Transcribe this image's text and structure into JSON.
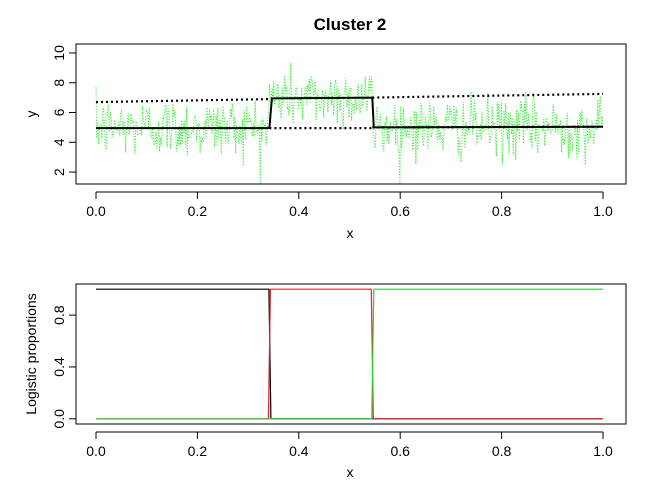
{
  "chart_data": [
    {
      "type": "line",
      "title": "Cluster 2",
      "xlabel": "x",
      "ylabel": "y",
      "xlim": [
        0,
        1
      ],
      "ylim": [
        1.2,
        10.6
      ],
      "x_ticks": [
        0.0,
        0.2,
        0.4,
        0.6,
        0.8,
        1.0
      ],
      "x_tick_labels": [
        "0.0",
        "0.2",
        "0.4",
        "0.6",
        "0.8",
        "1.0"
      ],
      "y_ticks": [
        2,
        4,
        6,
        8,
        10
      ],
      "y_tick_labels": [
        "2",
        "4",
        "6",
        "8",
        "10"
      ],
      "grid": false,
      "legend": "none",
      "series": [
        {
          "style": "dotted-noisy",
          "color": "#33ee33",
          "noise_sd": 1.0,
          "n_points": 600,
          "base": {
            "x": [
              0,
              0.342,
              0.342,
              0.545,
              0.545,
              1.0
            ],
            "y": [
              5.0,
              5.0,
              7.0,
              7.0,
              5.0,
              5.0
            ]
          }
        },
        {
          "style": "solid",
          "color": "#000000",
          "x": [
            0.0,
            0.342,
            0.347,
            0.545,
            0.548,
            1.0
          ],
          "y": [
            4.95,
            4.95,
            6.95,
            7.0,
            5.0,
            5.05
          ]
        },
        {
          "style": "dotted",
          "color": "#000000",
          "x": [
            0.0,
            0.342
          ],
          "y": [
            6.7,
            6.9
          ]
        },
        {
          "style": "dotted",
          "color": "#000000",
          "x": [
            0.342,
            0.545
          ],
          "y": [
            4.95,
            4.95
          ]
        },
        {
          "style": "dotted",
          "color": "#000000",
          "x": [
            0.545,
            1.0
          ],
          "y": [
            7.0,
            7.25
          ]
        },
        {
          "style": "dotted",
          "color": "#000000",
          "x": [
            0.545,
            1.0
          ],
          "y": [
            5.0,
            5.05
          ]
        }
      ]
    },
    {
      "type": "line",
      "title": "",
      "xlabel": "x",
      "ylabel": "Logistic proportions",
      "xlim": [
        0,
        1
      ],
      "ylim": [
        -0.04,
        1.04
      ],
      "x_ticks": [
        0.0,
        0.2,
        0.4,
        0.6,
        0.8,
        1.0
      ],
      "x_tick_labels": [
        "0.0",
        "0.2",
        "0.4",
        "0.6",
        "0.8",
        "1.0"
      ],
      "y_ticks": [
        0.0,
        0.4,
        0.8
      ],
      "y_tick_labels": [
        "0.0",
        "0.4",
        "0.8"
      ],
      "grid": false,
      "legend": "none",
      "series": [
        {
          "color": "#000000",
          "x": [
            0.0,
            0.341,
            0.345,
            1.0
          ],
          "y": [
            1.0,
            1.0,
            0.0,
            0.0
          ]
        },
        {
          "color": "#e8202a",
          "x": [
            0.0,
            0.34,
            0.344,
            0.543,
            0.547,
            1.0
          ],
          "y": [
            0.0,
            0.0,
            1.0,
            1.0,
            0.0,
            0.0
          ]
        },
        {
          "color": "#33cc33",
          "x": [
            0.0,
            0.544,
            0.548,
            1.0
          ],
          "y": [
            0.0,
            0.0,
            1.0,
            1.0
          ]
        }
      ]
    }
  ]
}
